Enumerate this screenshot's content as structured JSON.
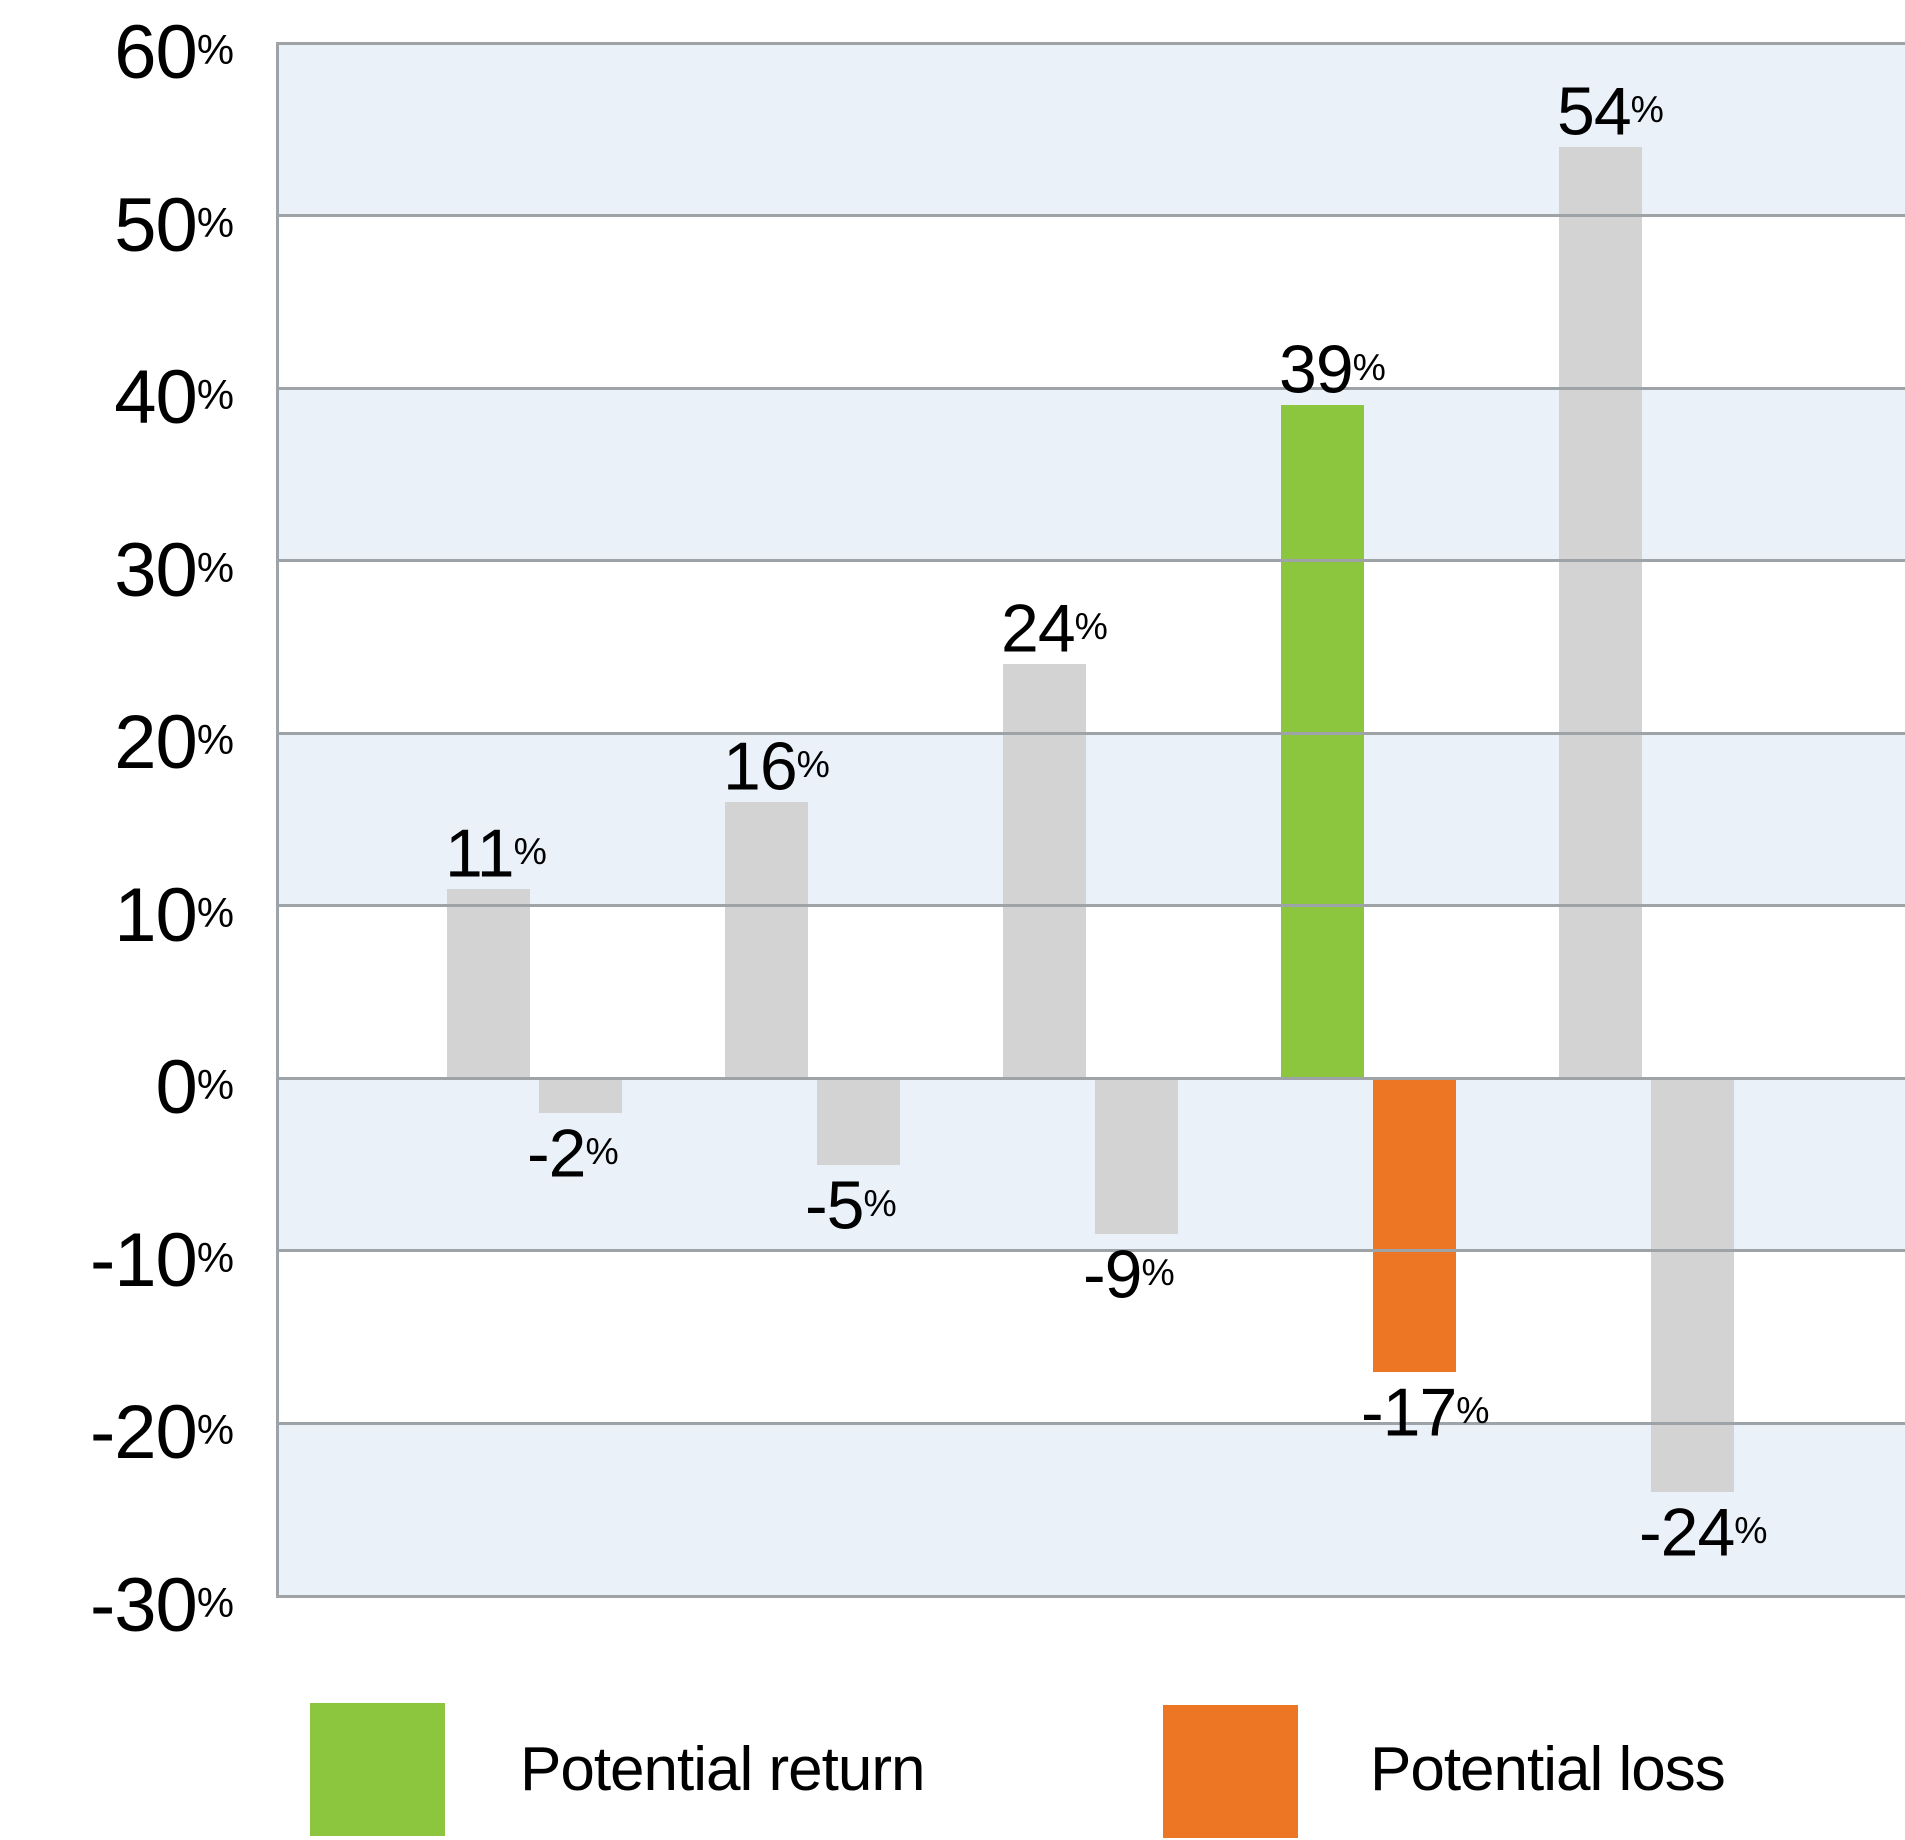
{
  "chart_data": {
    "type": "bar",
    "title": "",
    "series": [
      {
        "name": "Potential return",
        "values": [
          11,
          16,
          24,
          39,
          54
        ],
        "color_default": "#D3D3D3",
        "color_highlight": "#8CC63F"
      },
      {
        "name": "Potential loss",
        "values": [
          -2,
          -5,
          -9,
          -17,
          -24
        ],
        "color_default": "#D3D3D3",
        "color_highlight": "#EC7623"
      }
    ],
    "highlighted_pair_index": 3,
    "value_suffix": "%",
    "ylim": [
      -30,
      60
    ],
    "yticks": [
      60,
      50,
      40,
      30,
      20,
      10,
      0,
      -10,
      -20,
      -30
    ],
    "ytick_suffix": "%",
    "grid": true,
    "band_colors": [
      "#EAF1F9",
      "#FFFFFF"
    ],
    "gridline_color": "#9EA3A8",
    "legend_position": "bottom"
  },
  "legend": {
    "items": [
      {
        "label": "Potential return",
        "color": "#8CC63F"
      },
      {
        "label": "Potential loss",
        "color": "#EC7623"
      }
    ]
  }
}
